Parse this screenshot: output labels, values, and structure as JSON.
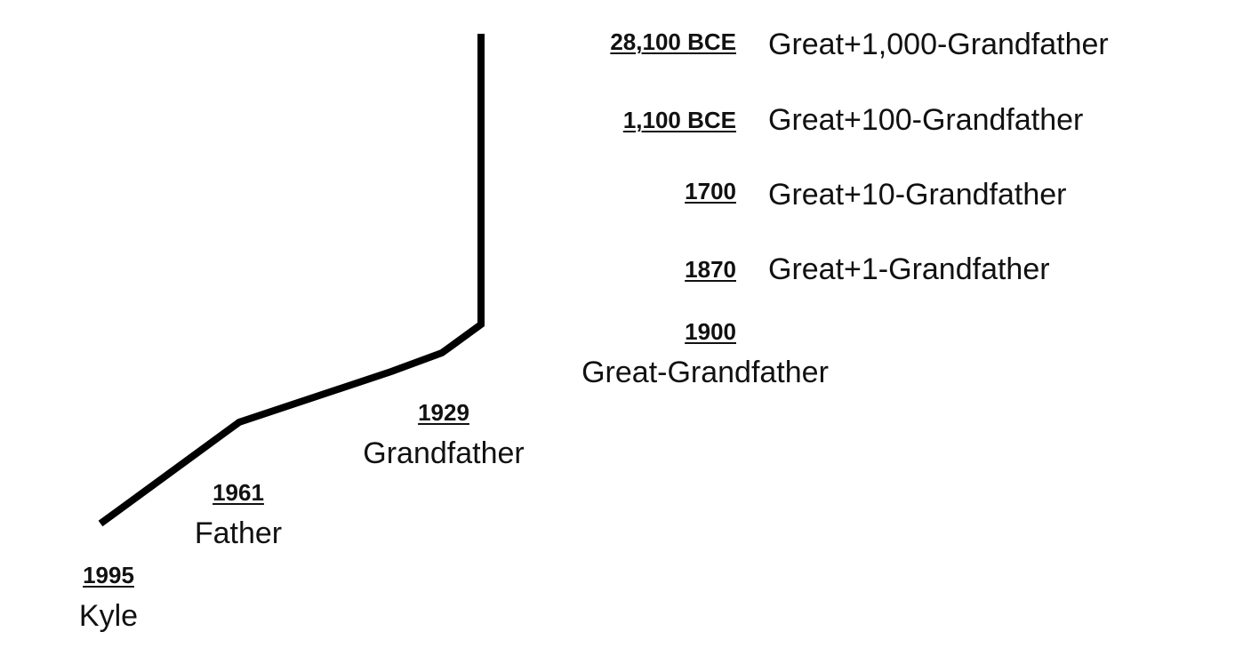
{
  "stroke_color": "#000000",
  "generations": [
    {
      "year": "1995",
      "label": "Kyle"
    },
    {
      "year": "1961",
      "label": "Father"
    },
    {
      "year": "1929",
      "label": "Grandfather"
    },
    {
      "year": "1900",
      "label": "Great-Grandfather"
    },
    {
      "year": "1870",
      "label": "Great+1-Grandfather"
    },
    {
      "year": "1700",
      "label": "Great+10-Grandfather"
    },
    {
      "year": "1,100 BCE",
      "label": "Great+100-Grandfather"
    },
    {
      "year": "28,100 BCE",
      "label": "Great+1,000-Grandfather"
    }
  ]
}
